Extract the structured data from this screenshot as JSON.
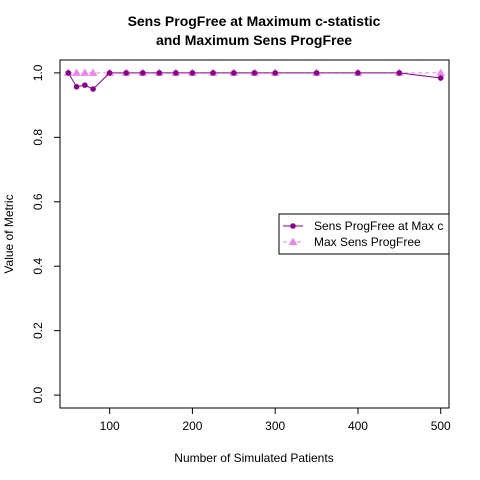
{
  "chart_data": {
    "type": "line",
    "title_lines": [
      "Sens ProgFree at Maximum c-statistic",
      "and Maximum Sens ProgFree"
    ],
    "xlabel": "Number of Simulated Patients",
    "ylabel": "Value of Metric",
    "xlim": [
      40,
      510
    ],
    "ylim": [
      -0.04,
      1.04
    ],
    "x_ticks": [
      100,
      200,
      300,
      400,
      500
    ],
    "y_ticks": [
      0.0,
      0.2,
      0.4,
      0.6,
      0.8,
      1.0
    ],
    "y_tick_labels": [
      "0.0",
      "0.2",
      "0.4",
      "0.6",
      "0.8",
      "1.0"
    ],
    "legend_position": "right",
    "series": [
      {
        "name": "Sens ProgFree at Max c",
        "color": "#8B008B",
        "marker": "circle",
        "line": "solid",
        "x": [
          50,
          60,
          70,
          80,
          100,
          120,
          140,
          160,
          180,
          200,
          225,
          250,
          275,
          300,
          350,
          400,
          450,
          500
        ],
        "y": [
          1.0,
          0.957,
          0.962,
          0.95,
          1.0,
          1.0,
          1.0,
          1.0,
          1.0,
          1.0,
          1.0,
          1.0,
          1.0,
          1.0,
          1.0,
          1.0,
          1.0,
          0.984
        ]
      },
      {
        "name": "Max Sens ProgFree",
        "color": "#EE82EE",
        "marker": "triangle",
        "line": "dashed",
        "x": [
          50,
          60,
          70,
          80,
          100,
          120,
          140,
          160,
          180,
          200,
          225,
          250,
          275,
          300,
          350,
          400,
          450,
          500
        ],
        "y": [
          1.0,
          1.0,
          1.0,
          1.0,
          1.0,
          1.0,
          1.0,
          1.0,
          1.0,
          1.0,
          1.0,
          1.0,
          1.0,
          1.0,
          1.0,
          1.0,
          1.0,
          1.0
        ]
      }
    ]
  }
}
